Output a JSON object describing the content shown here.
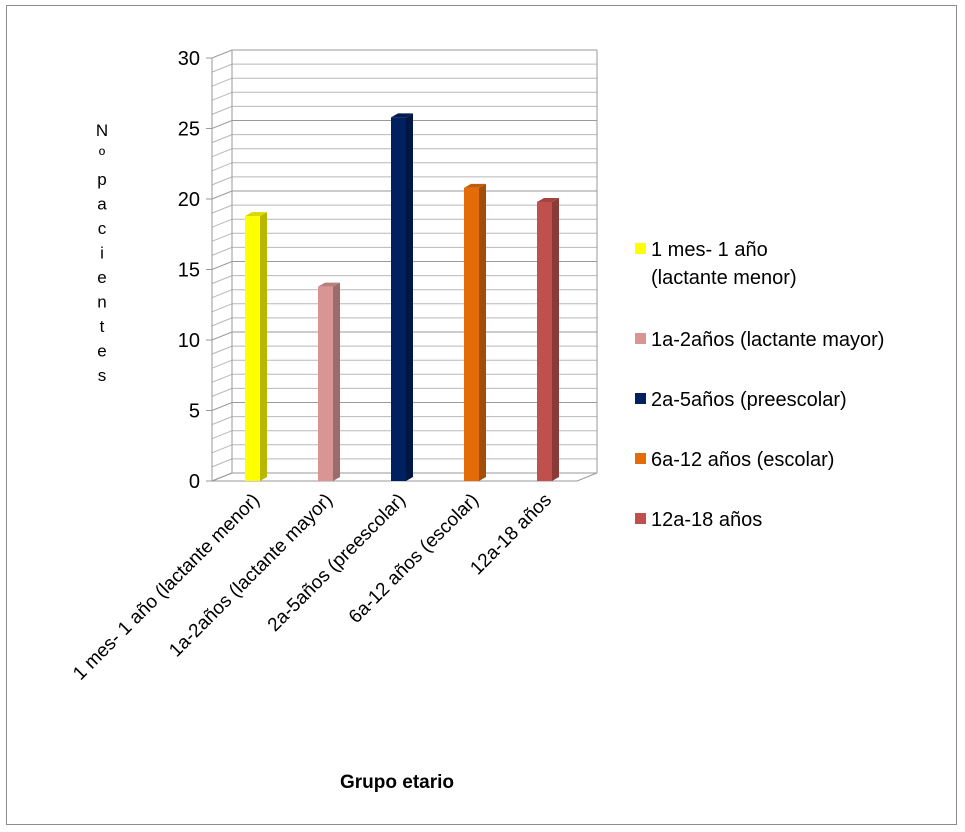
{
  "chart_data": {
    "type": "bar",
    "style": "3d-column",
    "categories": [
      "1 mes- 1 año (lactante menor)",
      "1a-2años (lactante mayor)",
      "2a-5años (preescolar)",
      "6a-12 años (escolar)",
      "12a-18 años"
    ],
    "values": [
      19,
      14,
      26,
      21,
      20
    ],
    "colors": [
      "#ffff00",
      "#d99594",
      "#002060",
      "#e36c09",
      "#c0504d"
    ],
    "xlabel": "Grupo etario",
    "ylabel": "Nº pacientes",
    "ylabel_chars": [
      "N",
      "º",
      "p",
      "a",
      "c",
      "i",
      "e",
      "n",
      "t",
      "e",
      "s"
    ],
    "ylim": [
      0,
      30
    ],
    "yticks": [
      0,
      5,
      10,
      15,
      20,
      25,
      30
    ],
    "grid": true,
    "legend_position": "right",
    "legend": [
      "1 mes- 1 año (lactante menor)",
      "1a-2años (lactante mayor)",
      "2a-5años (preescolar)",
      "6a-12 años (escolar)",
      "12a-18 años"
    ]
  }
}
